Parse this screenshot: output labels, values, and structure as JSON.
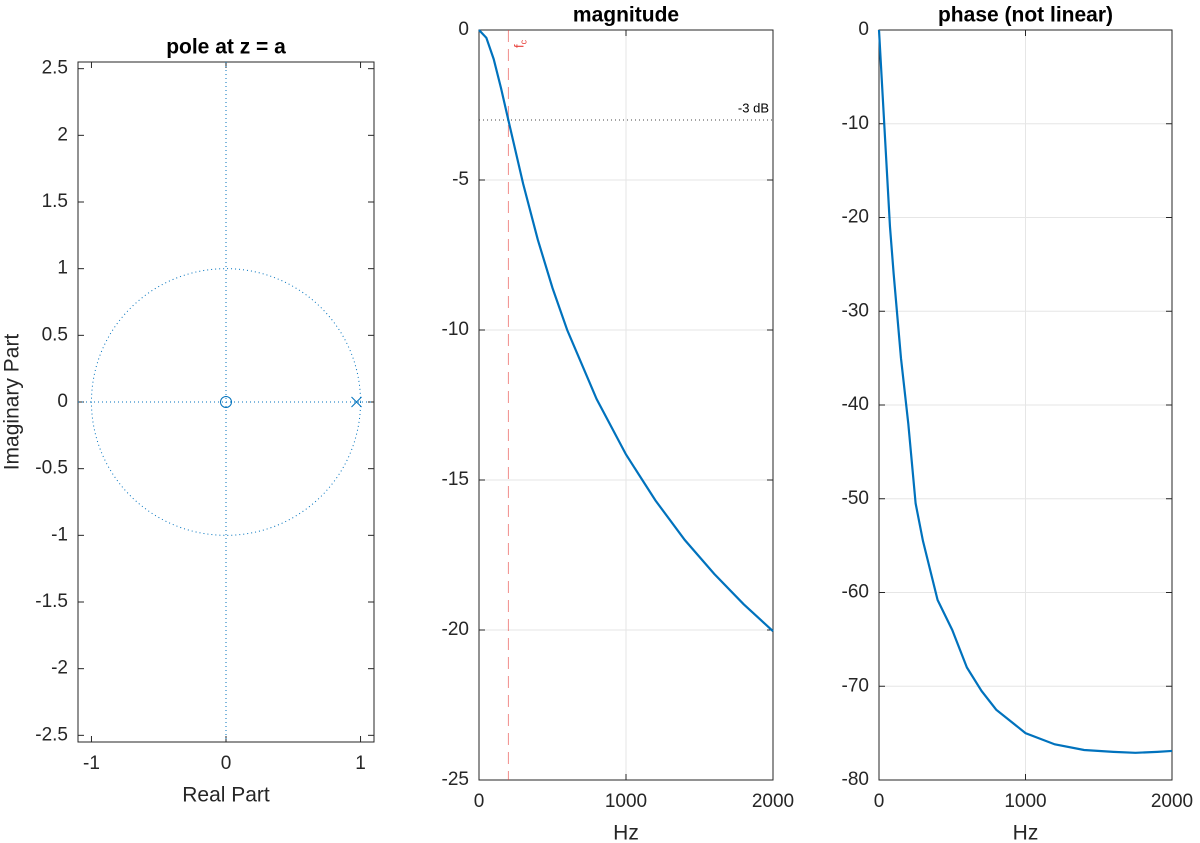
{
  "chart_data": [
    {
      "type": "pole-zero",
      "title": "pole at z = a",
      "xlabel": "Real Part",
      "ylabel": "Imaginary Part",
      "xlim": [
        -1.1,
        1.1
      ],
      "ylim": [
        -2.55,
        2.55
      ],
      "xticks": [
        -1,
        0,
        1
      ],
      "yticks": [
        -2.5,
        -2,
        -1.5,
        -1,
        -0.5,
        0,
        0.5,
        1,
        1.5,
        2,
        2.5
      ],
      "color": "#0072bd",
      "unit_circle": true,
      "grid": false,
      "zeros": [
        {
          "x": 0,
          "y": 0
        }
      ],
      "poles": [
        {
          "x": 0.97,
          "y": 0
        }
      ]
    },
    {
      "type": "line",
      "title": "magnitude",
      "xlabel": "Hz",
      "xlim": [
        0,
        2000
      ],
      "ylim": [
        -25,
        0
      ],
      "xticks": [
        0,
        1000,
        2000
      ],
      "yticks": [
        -25,
        -20,
        -15,
        -10,
        -5,
        0
      ],
      "grid": true,
      "color": "#0072bd",
      "x": [
        0,
        50,
        100,
        150,
        200,
        300,
        400,
        500,
        600,
        800,
        1000,
        1200,
        1400,
        1600,
        1800,
        2000
      ],
      "values": [
        0,
        -0.26,
        -0.97,
        -1.94,
        -3.01,
        -5.12,
        -6.99,
        -8.6,
        -10,
        -12.3,
        -14.15,
        -15.68,
        -17,
        -18.13,
        -19.14,
        -20.04
      ],
      "annotations": [
        {
          "text": "-3 dB",
          "y": -3
        },
        {
          "text": "f",
          "subscript": "c",
          "x": 200,
          "color": "#e8413c"
        }
      ]
    },
    {
      "type": "line",
      "title": "phase (not linear)",
      "xlabel": "Hz",
      "xlim": [
        0,
        2000
      ],
      "ylim": [
        -80,
        0
      ],
      "xticks": [
        0,
        1000,
        2000
      ],
      "yticks": [
        -80,
        -70,
        -60,
        -50,
        -40,
        -30,
        -20,
        -10,
        0
      ],
      "grid": true,
      "color": "#0072bd",
      "x": [
        0,
        25,
        50,
        75,
        100,
        150,
        200,
        250,
        300,
        400,
        500,
        600,
        700,
        800,
        1000,
        1200,
        1400,
        1600,
        1750,
        1900,
        2000
      ],
      "values": [
        0,
        -7,
        -14,
        -21,
        -26,
        -35,
        -42,
        -50.5,
        -54.5,
        -60.8,
        -64,
        -68,
        -70.5,
        -72.5,
        -75,
        -76.2,
        -76.8,
        -77,
        -77.1,
        -77,
        -76.9
      ]
    }
  ]
}
